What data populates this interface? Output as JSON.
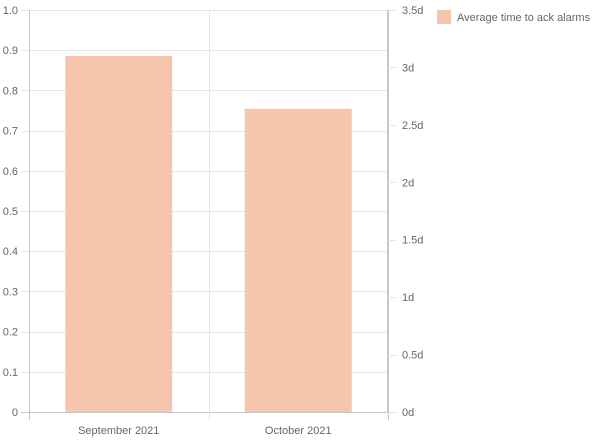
{
  "chart_data": {
    "type": "bar",
    "categories": [
      "September 2021",
      "October 2021"
    ],
    "series": [
      {
        "name": "Average time to ack alarms",
        "values": [
          3.1,
          2.64
        ],
        "unit": "d",
        "color": "#f5c6ad"
      }
    ],
    "y_left": {
      "ylim": [
        0,
        1
      ],
      "ticks": [
        0,
        0.1,
        0.2,
        0.3,
        0.4,
        0.5,
        0.6,
        0.7,
        0.8,
        0.9,
        1.0
      ],
      "tick_labels": [
        "0",
        "0.1",
        "0.2",
        "0.3",
        "0.4",
        "0.5",
        "0.6",
        "0.7",
        "0.8",
        "0.9",
        "1.0"
      ]
    },
    "y_right": {
      "ylim": [
        0,
        3.5
      ],
      "ticks": [
        0,
        0.5,
        1,
        1.5,
        2,
        2.5,
        3,
        3.5
      ],
      "tick_labels": [
        "0d",
        "0.5d",
        "1d",
        "1.5d",
        "2d",
        "2.5d",
        "3d",
        "3.5d"
      ]
    },
    "grid": true,
    "legend_position": "top-right",
    "colors": {
      "grid": "#e6e6e6",
      "axis": "#c8c8c8",
      "text": "#666666"
    }
  }
}
